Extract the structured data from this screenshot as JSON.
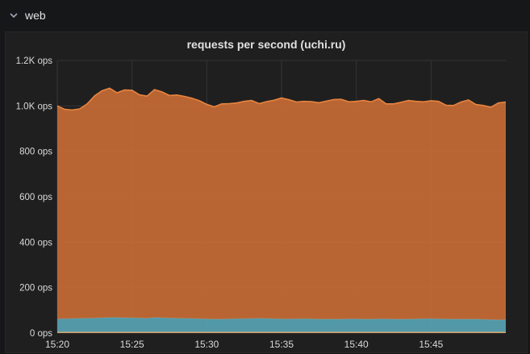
{
  "row": {
    "title": "web",
    "chevron_icon": "chevron-down-icon"
  },
  "panel": {
    "title": "requests per second (uchi.ru)"
  },
  "colors": {
    "background": "#161719",
    "panel": "#1f1f20",
    "orange_series": "#c76b35",
    "orange_line": "#e8843f",
    "teal_series": "#57a3b3",
    "bottom_series": "#e0a86a",
    "grid": "#353538"
  },
  "chart_data": {
    "type": "area",
    "stacked": true,
    "x_unit": "time",
    "x_ticks": [
      "15:20",
      "15:25",
      "15:30",
      "15:35",
      "15:40",
      "15:45"
    ],
    "xlim": [
      "15:20",
      "15:50"
    ],
    "y_ticks": [
      "0 ops",
      "200 ops",
      "400 ops",
      "600 ops",
      "800 ops",
      "1.0K ops",
      "1.2K ops"
    ],
    "ylim": [
      0,
      1200
    ],
    "grid": true,
    "legend": "none",
    "x": [
      "15:20",
      "15:20:30",
      "15:21",
      "15:21:30",
      "15:22",
      "15:22:30",
      "15:23",
      "15:23:30",
      "15:24",
      "15:24:30",
      "15:25",
      "15:25:30",
      "15:26",
      "15:26:30",
      "15:27",
      "15:27:30",
      "15:28",
      "15:28:30",
      "15:29",
      "15:29:30",
      "15:30",
      "15:30:30",
      "15:31",
      "15:31:30",
      "15:32",
      "15:32:30",
      "15:33",
      "15:33:30",
      "15:34",
      "15:34:30",
      "15:35",
      "15:35:30",
      "15:36",
      "15:36:30",
      "15:37",
      "15:37:30",
      "15:38",
      "15:38:30",
      "15:39",
      "15:39:30",
      "15:40",
      "15:40:30",
      "15:41",
      "15:41:30",
      "15:42",
      "15:42:30",
      "15:43",
      "15:43:30",
      "15:44",
      "15:44:30",
      "15:45",
      "15:45:30",
      "15:46",
      "15:46:30",
      "15:47",
      "15:47:30",
      "15:48",
      "15:48:30",
      "15:49",
      "15:49:30",
      "15:50"
    ],
    "series": [
      {
        "values": [
          5,
          5,
          5,
          5,
          5,
          5,
          5,
          5,
          5,
          5,
          5,
          5,
          5,
          5,
          5,
          5,
          5,
          5,
          5,
          5,
          5,
          5,
          5,
          5,
          5,
          5,
          5,
          5,
          5,
          5,
          5,
          5,
          5,
          5,
          5,
          5,
          5,
          5,
          5,
          5,
          5,
          5,
          5,
          5,
          5,
          5,
          5,
          5,
          5,
          5,
          5,
          5,
          5,
          5,
          5,
          5,
          5,
          5,
          5,
          5,
          5
        ]
      },
      {
        "values": [
          57,
          58,
          59,
          60,
          60,
          61,
          62,
          63,
          63,
          62,
          62,
          61,
          60,
          63,
          62,
          61,
          60,
          60,
          59,
          58,
          57,
          56,
          56,
          57,
          58,
          58,
          59,
          60,
          59,
          58,
          57,
          57,
          57,
          58,
          57,
          56,
          56,
          56,
          56,
          57,
          57,
          56,
          56,
          57,
          57,
          56,
          56,
          56,
          57,
          58,
          58,
          57,
          57,
          56,
          56,
          56,
          56,
          55,
          54,
          53,
          54
        ]
      },
      {
        "values": [
          938,
          922,
          918,
          922,
          944,
          978,
          1000,
          1010,
          990,
          1003,
          1002,
          983,
          978,
          1004,
          995,
          980,
          983,
          977,
          970,
          960,
          945,
          935,
          948,
          948,
          950,
          957,
          960,
          945,
          955,
          962,
          973,
          965,
          955,
          957,
          957,
          953,
          960,
          967,
          968,
          956,
          958,
          963,
          957,
          970,
          947,
          948,
          955,
          963,
          958,
          955,
          960,
          958,
          941,
          941,
          956,
          965,
          945,
          942,
          935,
          955,
          958
        ]
      }
    ]
  }
}
